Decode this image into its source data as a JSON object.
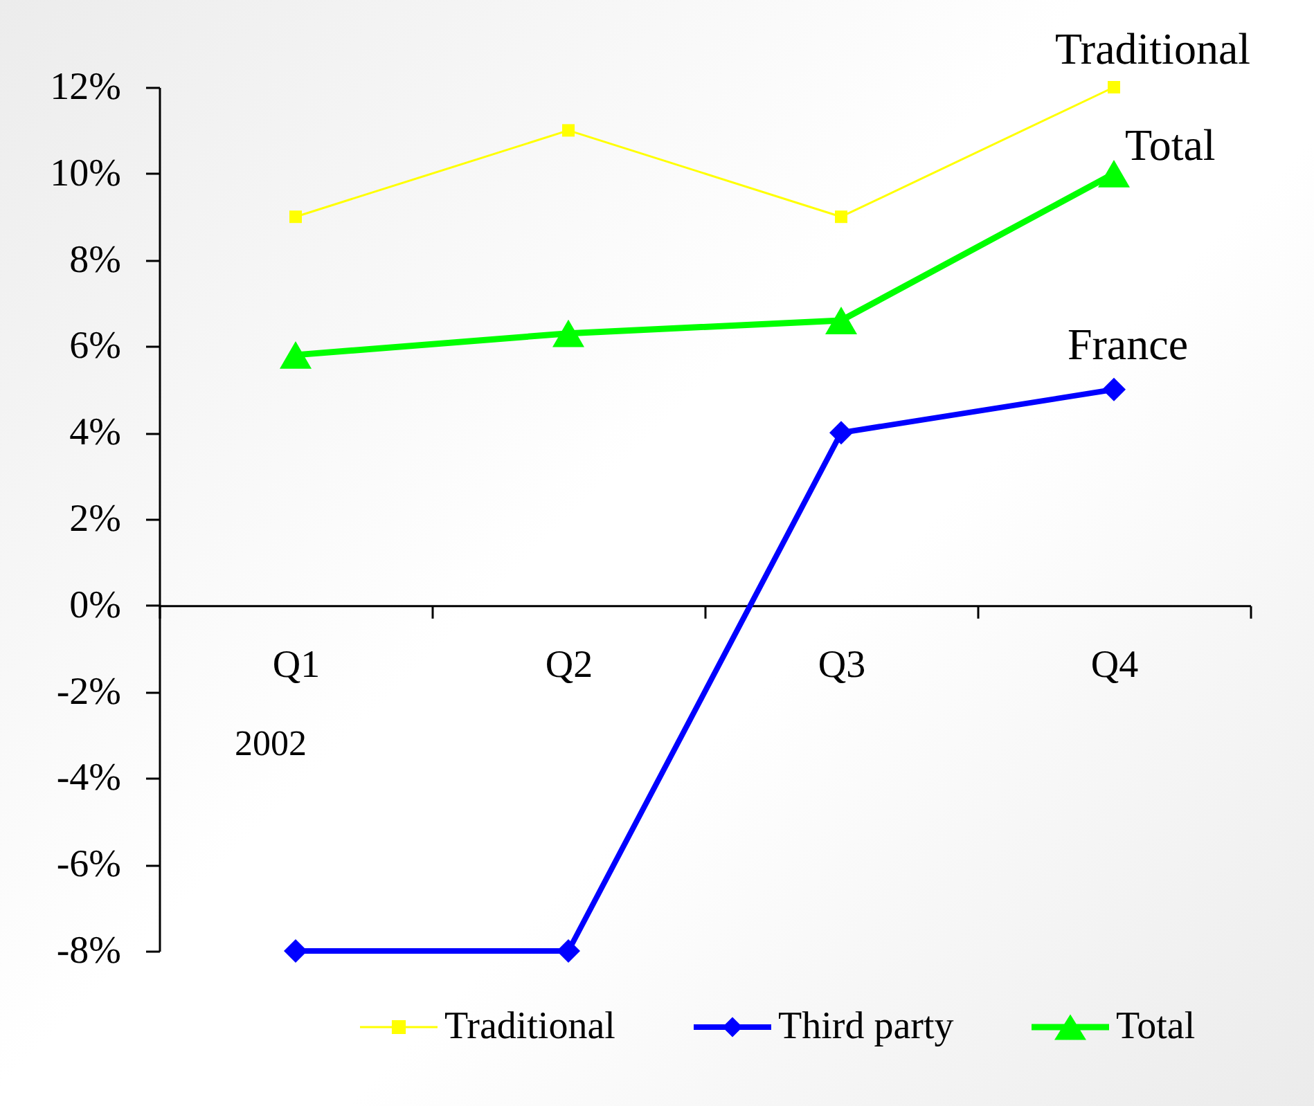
{
  "chart_data": {
    "type": "line",
    "categories": [
      "Q1",
      "Q2",
      "Q3",
      "Q4"
    ],
    "series": [
      {
        "name": "Traditional",
        "color": "#ffff00",
        "marker": "square",
        "values": [
          9,
          11,
          9,
          12
        ]
      },
      {
        "name": "Third party",
        "color": "#0000ff",
        "marker": "diamond",
        "values": [
          -8,
          -8,
          4,
          5
        ]
      },
      {
        "name": "Total",
        "color": "#00ff00",
        "marker": "triangle",
        "values": [
          5.8,
          6.3,
          6.6,
          10
        ]
      }
    ],
    "ylim": [
      -8,
      12
    ],
    "yticks": [
      {
        "value": -8,
        "label": "-8%"
      },
      {
        "value": -6,
        "label": "-6%"
      },
      {
        "value": -4,
        "label": "-4%"
      },
      {
        "value": -2,
        "label": "-2%"
      },
      {
        "value": 0,
        "label": "0%"
      },
      {
        "value": 2,
        "label": "2%"
      },
      {
        "value": 4,
        "label": "4%"
      },
      {
        "value": 6,
        "label": "6%"
      },
      {
        "value": 8,
        "label": "8%"
      },
      {
        "value": 10,
        "label": "10%"
      },
      {
        "value": 12,
        "label": "12%"
      }
    ],
    "legend": "bottom",
    "annotations": [
      {
        "text": "Traditional",
        "x": "Q4",
        "y": 12
      },
      {
        "text": "Total",
        "x": "Q4",
        "y": 10
      },
      {
        "text": "France",
        "x": "Q4",
        "y": 5
      },
      "2002"
    ]
  }
}
